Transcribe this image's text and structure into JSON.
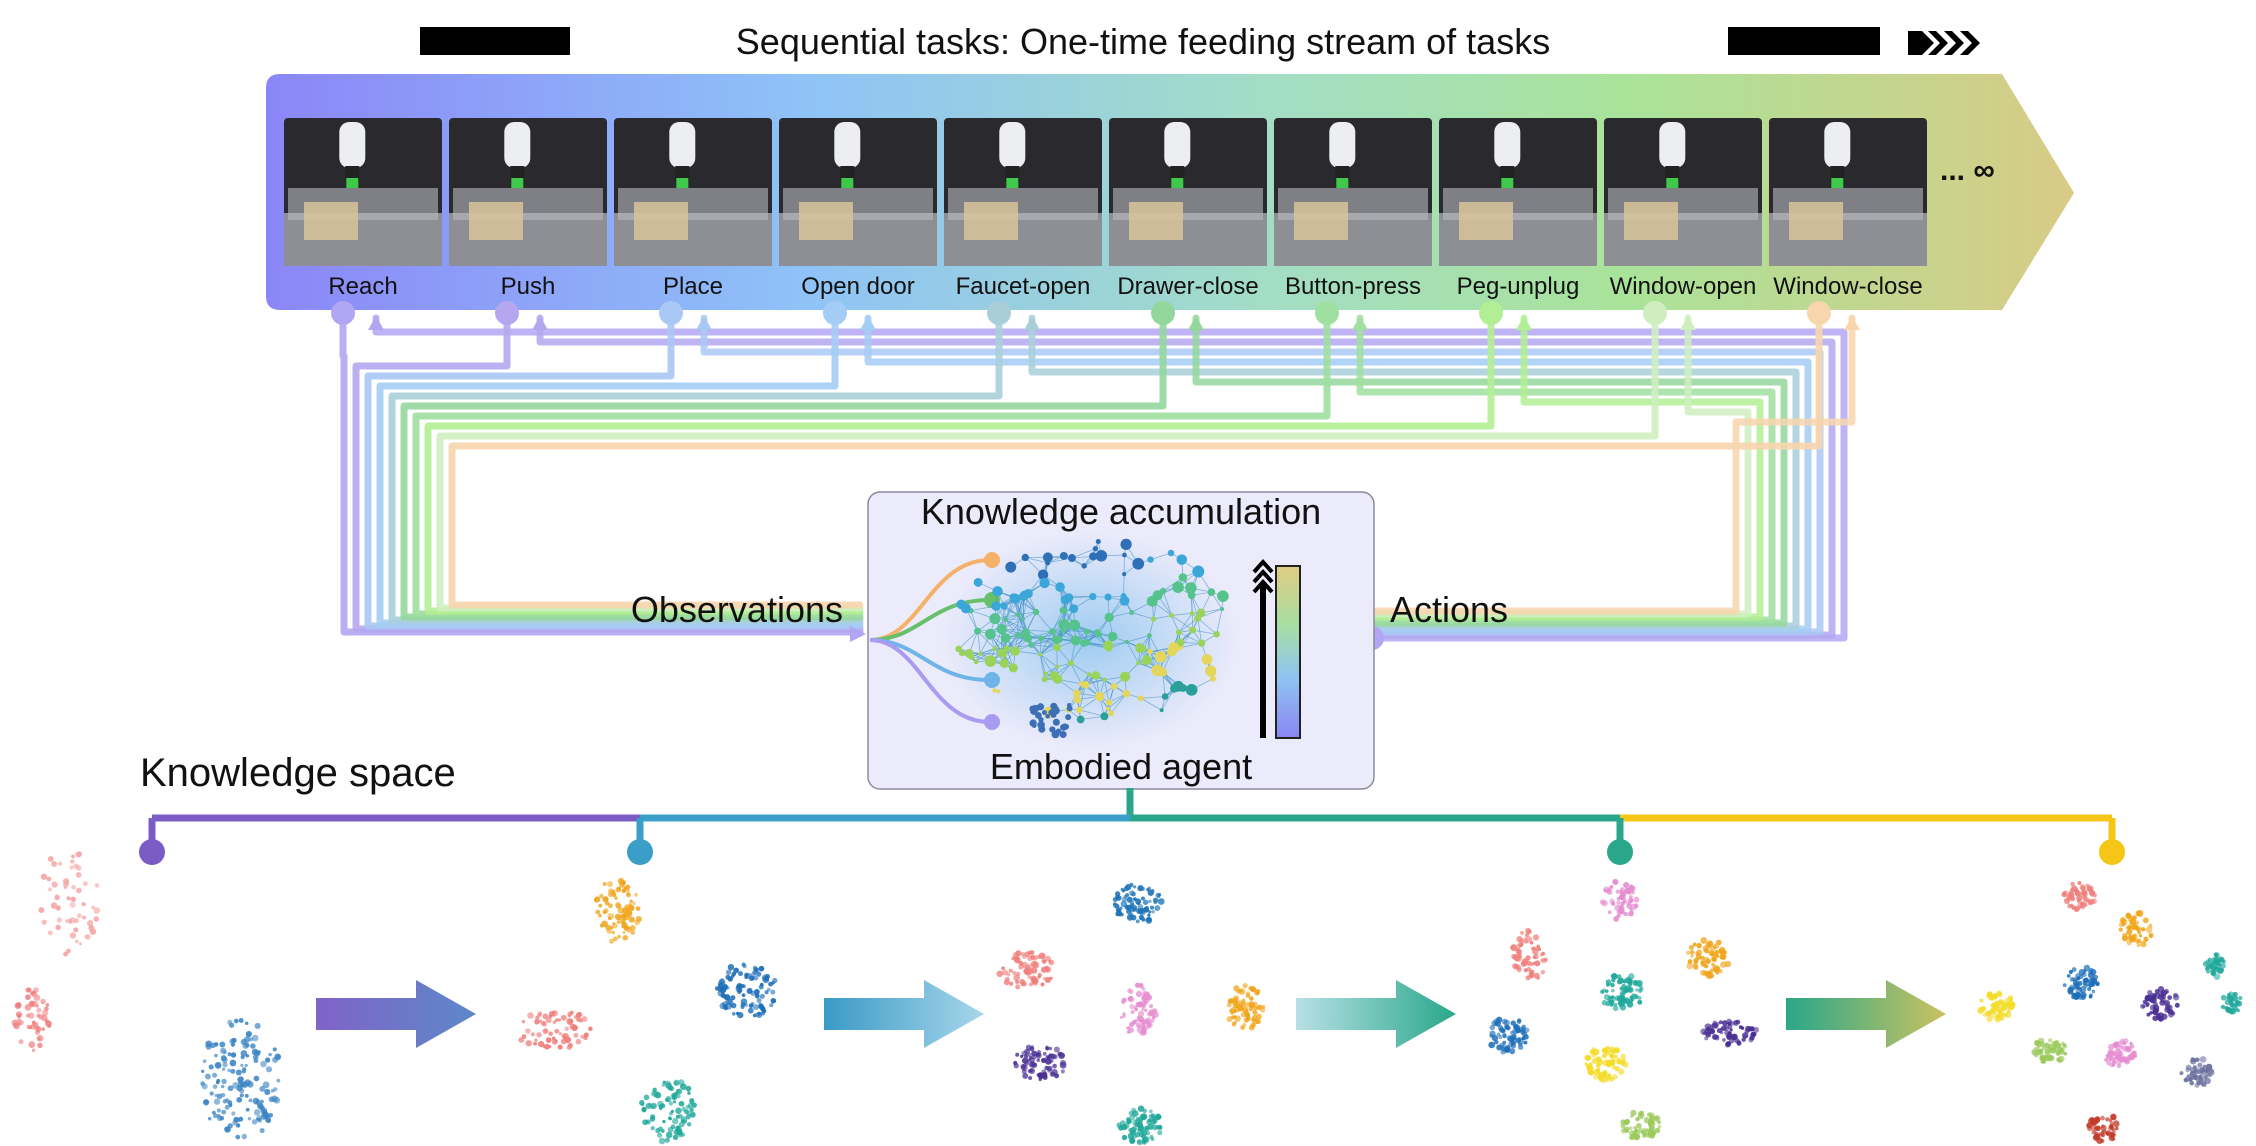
{
  "header": {
    "title": "Sequential tasks: One-time feeding stream of tasks",
    "more_symbol": "... ∞"
  },
  "tasks": [
    {
      "label": "Reach",
      "color": "#b1a6f3"
    },
    {
      "label": "Push",
      "color": "#b4a7f0"
    },
    {
      "label": "Place",
      "color": "#a9c8f5"
    },
    {
      "label": "Open door",
      "color": "#a3cdf4"
    },
    {
      "label": "Faucet-open",
      "color": "#a8cfd9"
    },
    {
      "label": "Drawer-close",
      "color": "#94d79c"
    },
    {
      "label": "Button-press",
      "color": "#9fdfa0"
    },
    {
      "label": "Peg-unplug",
      "color": "#b2ee93"
    },
    {
      "label": "Window-open",
      "color": "#cfeec0"
    },
    {
      "label": "Window-close",
      "color": "#f7d5ad"
    }
  ],
  "center": {
    "top_label": "Knowledge accumulation",
    "bottom_label": "Embodied agent",
    "left_label": "Observations",
    "right_label": "Actions"
  },
  "knowledge": {
    "title": "Knowledge space",
    "branch_colors": [
      "#7b5cc4",
      "#3a9ec9",
      "#2aa78a",
      "#f5c518"
    ]
  },
  "palette": {
    "banner_start": "#8a88f7",
    "banner_mid": "#8ec8f6",
    "banner_green": "#9fe0a0",
    "banner_end": "#d8c97a"
  }
}
